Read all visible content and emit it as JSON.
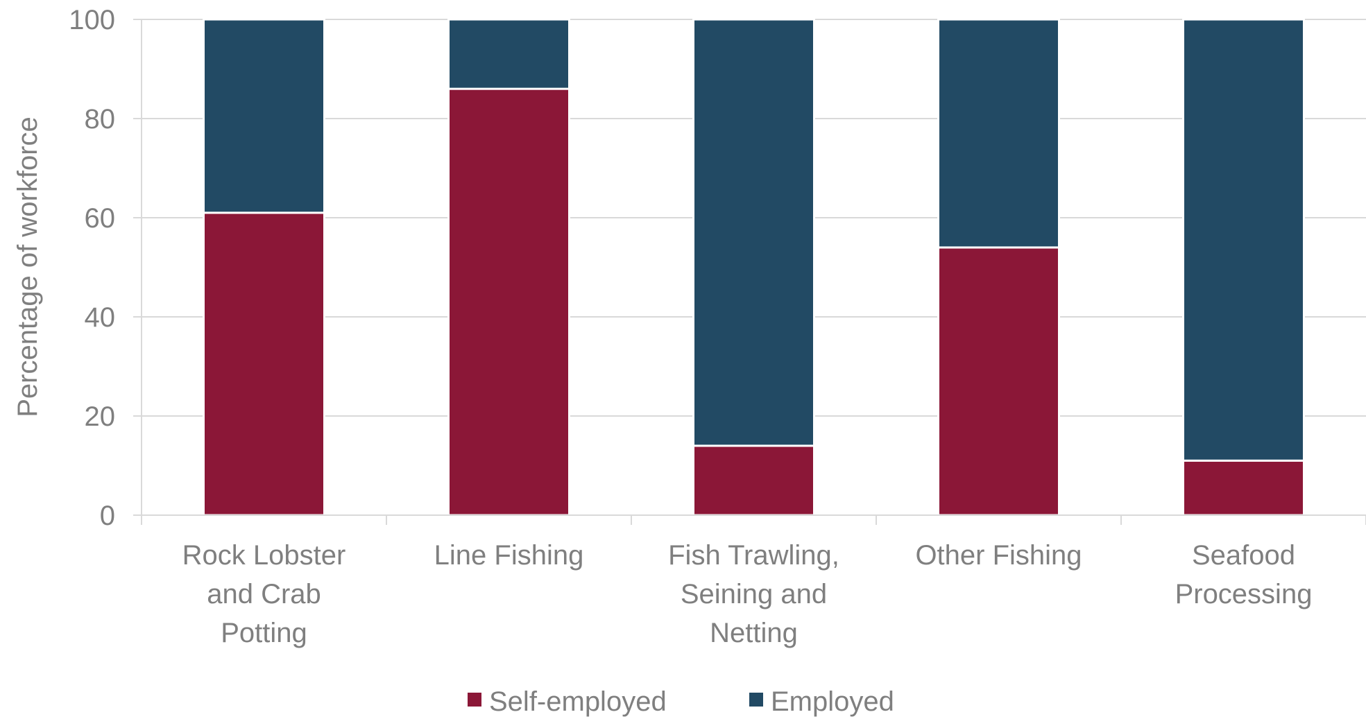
{
  "chart_data": {
    "type": "bar",
    "stacked": true,
    "title": "",
    "xlabel": "",
    "ylabel": "Percentage of workforce",
    "ylim": [
      0,
      100
    ],
    "yticks": [
      0,
      20,
      40,
      60,
      80,
      100
    ],
    "grid": true,
    "legend_position": "bottom",
    "categories": [
      [
        "Rock Lobster",
        "and Crab",
        "Potting"
      ],
      [
        "Line Fishing"
      ],
      [
        "Fish Trawling,",
        "Seining and",
        "Netting"
      ],
      [
        "Other Fishing"
      ],
      [
        "Seafood",
        "Processing"
      ]
    ],
    "series": [
      {
        "name": "Self-employed",
        "color": "#8b1737",
        "values": [
          61,
          86,
          14,
          54,
          11
        ]
      },
      {
        "name": "Employed",
        "color": "#224a64",
        "values": [
          39,
          14,
          86,
          46,
          89
        ]
      }
    ]
  }
}
